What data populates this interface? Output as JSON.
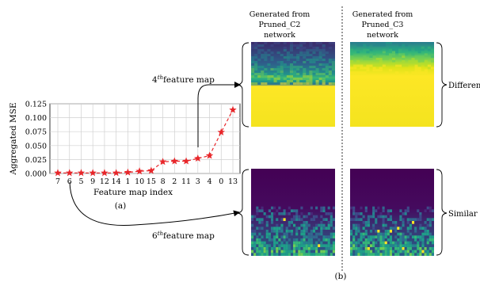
{
  "chart_data": {
    "type": "line",
    "xlabel": "Feature map index",
    "ylabel": "Aggregated MSE",
    "categories": [
      "7",
      "6",
      "5",
      "9",
      "12",
      "14",
      "1",
      "10",
      "15",
      "8",
      "2",
      "11",
      "3",
      "4",
      "0",
      "13"
    ],
    "values": [
      0.001,
      0.001,
      0.001,
      0.001,
      0.001,
      0.001,
      0.002,
      0.004,
      0.005,
      0.021,
      0.022,
      0.022,
      0.027,
      0.032,
      0.074,
      0.114
    ],
    "ylim": [
      0,
      0.125
    ],
    "yticks": [
      "0.000",
      "0.025",
      "0.050",
      "0.075",
      "0.100",
      "0.125"
    ],
    "grid": true,
    "color": "#e8262a",
    "marker": "star",
    "line_style": "dashed"
  },
  "labels": {
    "panel_a": "(a)",
    "panel_b": "(b)",
    "col1_title": [
      "Generated from",
      "Pruned_C2",
      "network"
    ],
    "col2_title": [
      "Generated from",
      "Pruned_C3",
      "network"
    ],
    "fm4_sup": "th",
    "fm4_num": "4",
    "fm4_text": "feature map",
    "fm6_num": "6",
    "fm6_sup": "th",
    "fm6_text": "feature map",
    "different": "Different",
    "similar": "Similar"
  },
  "colors": {
    "viridis_dark": "#440154",
    "viridis_blue": "#31688e",
    "viridis_teal": "#21918c",
    "viridis_green": "#35b779",
    "viridis_yellow": "#fde725"
  }
}
